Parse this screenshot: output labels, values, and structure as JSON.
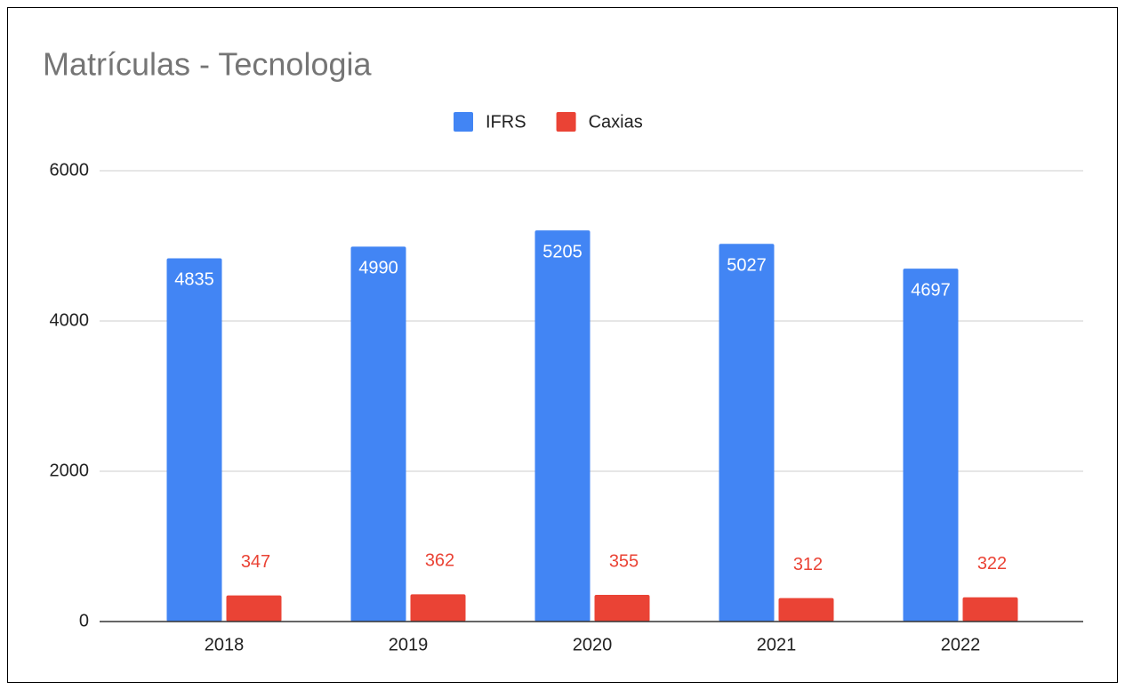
{
  "chart_data": {
    "type": "bar",
    "title": "Matrículas - Tecnologia",
    "categories": [
      "2018",
      "2019",
      "2020",
      "2021",
      "2022"
    ],
    "series": [
      {
        "name": "IFRS",
        "color": "#4285f4",
        "values": [
          4835,
          4990,
          5205,
          5027,
          4697
        ]
      },
      {
        "name": "Caxias",
        "color": "#ea4335",
        "values": [
          347,
          362,
          355,
          312,
          322
        ]
      }
    ],
    "ylim": [
      0,
      6000
    ],
    "yticks": [
      0,
      2000,
      4000,
      6000
    ],
    "grid": true,
    "legend": "top"
  }
}
